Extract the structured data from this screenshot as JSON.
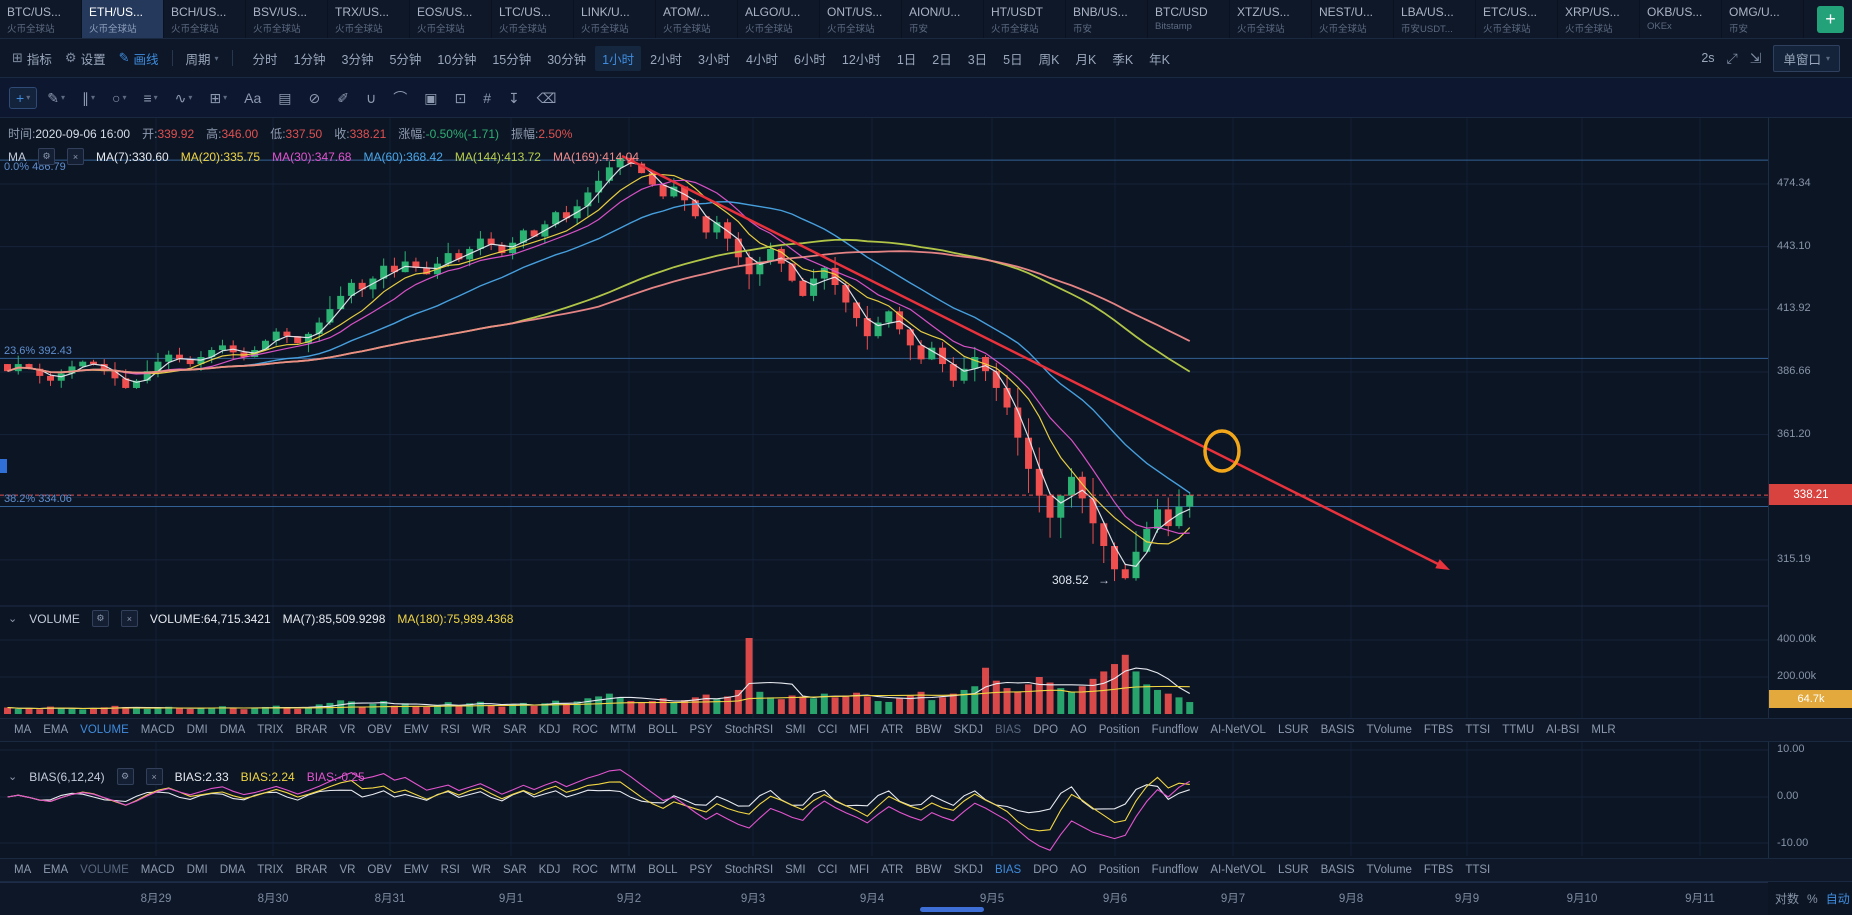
{
  "tabbar": {
    "add_label": "+",
    "tabs": [
      {
        "symbol": "BTC/US...",
        "exchange": "火币全球站"
      },
      {
        "symbol": "ETH/US...",
        "exchange": "火币全球站",
        "active": true
      },
      {
        "symbol": "BCH/US...",
        "exchange": "火币全球站"
      },
      {
        "symbol": "BSV/US...",
        "exchange": "火币全球站"
      },
      {
        "symbol": "TRX/US...",
        "exchange": "火币全球站"
      },
      {
        "symbol": "EOS/US...",
        "exchange": "火币全球站"
      },
      {
        "symbol": "LTC/US...",
        "exchange": "火币全球站"
      },
      {
        "symbol": "LINK/U...",
        "exchange": "火币全球站"
      },
      {
        "symbol": "ATOM/...",
        "exchange": "火币全球站"
      },
      {
        "symbol": "ALGO/U...",
        "exchange": "火币全球站"
      },
      {
        "symbol": "ONT/US...",
        "exchange": "火币全球站"
      },
      {
        "symbol": "AION/U...",
        "exchange": "币安"
      },
      {
        "symbol": "HT/USDT",
        "exchange": "火币全球站"
      },
      {
        "symbol": "BNB/US...",
        "exchange": "币安"
      },
      {
        "symbol": "BTC/USD",
        "exchange": "Bitstamp"
      },
      {
        "symbol": "XTZ/US...",
        "exchange": "火币全球站"
      },
      {
        "symbol": "NEST/U...",
        "exchange": "火币全球站"
      },
      {
        "symbol": "LBA/US...",
        "exchange": "币安USDT..."
      },
      {
        "symbol": "ETC/US...",
        "exchange": "火币全球站"
      },
      {
        "symbol": "XRP/US...",
        "exchange": "火币全球站"
      },
      {
        "symbol": "OKB/US...",
        "exchange": "OKEx"
      },
      {
        "symbol": "OMG/U...",
        "exchange": "币安"
      }
    ]
  },
  "timebar": {
    "indicator_label": "指标",
    "settings_label": "设置",
    "draw_label": "画线",
    "period_label": "周期",
    "timeframes": [
      "分时",
      "1分钟",
      "3分钟",
      "5分钟",
      "10分钟",
      "15分钟",
      "30分钟",
      "1小时",
      "2小时",
      "3小时",
      "4小时",
      "6小时",
      "12小时",
      "1日",
      "2日",
      "3日",
      "5日",
      "周K",
      "月K",
      "季K",
      "年K"
    ],
    "active_timeframe": "1小时",
    "refresh": "2s",
    "window_mode": "单窗口"
  },
  "drawbar": {
    "tools": [
      {
        "name": "crosshair-tool",
        "glyph": "+",
        "caret": true,
        "active": true
      },
      {
        "name": "trendline-tool",
        "glyph": "✎",
        "caret": true
      },
      {
        "name": "channel-tool",
        "glyph": "∥",
        "caret": true
      },
      {
        "name": "ellipse-tool",
        "glyph": "○",
        "caret": true
      },
      {
        "name": "fib-retracement-tool",
        "glyph": "≡",
        "caret": true
      },
      {
        "name": "wave-tool",
        "glyph": "∿",
        "caret": true
      },
      {
        "name": "gann-tool",
        "glyph": "⊞",
        "caret": true
      },
      {
        "name": "text-tool",
        "glyph": "Aa",
        "caret": false
      },
      {
        "name": "brush-tool",
        "glyph": "▤",
        "caret": false
      },
      {
        "name": "hide-drawings-tool",
        "glyph": "⊘",
        "caret": false
      },
      {
        "name": "annotate-tool",
        "glyph": "✐",
        "caret": false
      },
      {
        "name": "magnet-tool",
        "glyph": "∪",
        "caret": false
      },
      {
        "name": "measure-tool",
        "glyph": "⌒",
        "caret": false
      },
      {
        "name": "lock-tool",
        "glyph": "▣",
        "caret": false
      },
      {
        "name": "copy-tool",
        "glyph": "⊡",
        "caret": false
      },
      {
        "name": "screenshot-tool",
        "glyph": "#",
        "caret": false
      },
      {
        "name": "export-tool",
        "glyph": "↧",
        "caret": false
      },
      {
        "name": "delete-tool",
        "glyph": "⌫",
        "caret": false
      }
    ]
  },
  "legends": {
    "ohlc": {
      "items": [
        {
          "label": "时间:",
          "value": "2020-09-06 16:00",
          "color": "#d7dee9"
        },
        {
          "label": "开:",
          "value": "339.92",
          "color": "#e0504f"
        },
        {
          "label": "高:",
          "value": "346.00",
          "color": "#e0504f"
        },
        {
          "label": "低:",
          "value": "337.50",
          "color": "#e0504f"
        },
        {
          "label": "收:",
          "value": "338.21",
          "color": "#e0504f"
        },
        {
          "label": "涨幅:",
          "value": "-0.50%(-1.71)",
          "color": "#2fae73"
        },
        {
          "label": "振幅:",
          "value": "2.50%",
          "color": "#e0504f"
        }
      ]
    },
    "ma": {
      "title": "MA",
      "items": [
        {
          "label": "MA(7):",
          "value": "330.60",
          "color": "#e6e9ef"
        },
        {
          "label": "MA(20):",
          "value": "335.75",
          "color": "#f0d543"
        },
        {
          "label": "MA(30):",
          "value": "347.68",
          "color": "#e254ce"
        },
        {
          "label": "MA(60):",
          "value": "368.42",
          "color": "#4aa6e8"
        },
        {
          "label": "MA(144):",
          "value": "413.72",
          "color": "#b9cf4a"
        },
        {
          "label": "MA(169):",
          "value": "414.04",
          "color": "#f08a8a"
        }
      ]
    },
    "volume": {
      "title": "VOLUME",
      "items": [
        {
          "label": "VOLUME:",
          "value": "64,715.3421",
          "color": "#e6e9ef"
        },
        {
          "label": "MA(7):",
          "value": "85,509.9298",
          "color": "#e6e9ef"
        },
        {
          "label": "MA(180):",
          "value": "75,989.4368",
          "color": "#f0d543"
        }
      ]
    },
    "bias": {
      "title": "BIAS(6,12,24)",
      "items": [
        {
          "label": "BIAS:",
          "value": "2.33",
          "color": "#e6e9ef"
        },
        {
          "label": "BIAS:",
          "value": "2.24",
          "color": "#f0d543"
        },
        {
          "label": "BIAS:",
          "value": "-0.25",
          "color": "#e254ce"
        }
      ]
    }
  },
  "indicator_rows": {
    "row1": [
      {
        "label": "MA"
      },
      {
        "label": "EMA"
      },
      {
        "label": "VOLUME",
        "state": "active"
      },
      {
        "label": "MACD"
      },
      {
        "label": "DMI"
      },
      {
        "label": "DMA"
      },
      {
        "label": "TRIX"
      },
      {
        "label": "BRAR"
      },
      {
        "label": "VR"
      },
      {
        "label": "OBV"
      },
      {
        "label": "EMV"
      },
      {
        "label": "RSI"
      },
      {
        "label": "WR"
      },
      {
        "label": "SAR"
      },
      {
        "label": "KDJ"
      },
      {
        "label": "ROC"
      },
      {
        "label": "MTM"
      },
      {
        "label": "BOLL"
      },
      {
        "label": "PSY"
      },
      {
        "label": "StochRSI"
      },
      {
        "label": "SMI"
      },
      {
        "label": "CCI"
      },
      {
        "label": "MFI"
      },
      {
        "label": "ATR"
      },
      {
        "label": "BBW"
      },
      {
        "label": "SKDJ"
      },
      {
        "label": "BIAS",
        "state": "semi"
      },
      {
        "label": "DPO"
      },
      {
        "label": "AO"
      },
      {
        "label": "Position"
      },
      {
        "label": "Fundflow"
      },
      {
        "label": "AI-NetVOL"
      },
      {
        "label": "LSUR"
      },
      {
        "label": "BASIS"
      },
      {
        "label": "TVolume"
      },
      {
        "label": "FTBS"
      },
      {
        "label": "TTSI"
      },
      {
        "label": "TTMU"
      },
      {
        "label": "AI-BSI"
      },
      {
        "label": "MLR"
      }
    ],
    "row2": [
      {
        "label": "MA"
      },
      {
        "label": "EMA"
      },
      {
        "label": "VOLUME",
        "state": "semi"
      },
      {
        "label": "MACD"
      },
      {
        "label": "DMI"
      },
      {
        "label": "DMA"
      },
      {
        "label": "TRIX"
      },
      {
        "label": "BRAR"
      },
      {
        "label": "VR"
      },
      {
        "label": "OBV"
      },
      {
        "label": "EMV"
      },
      {
        "label": "RSI"
      },
      {
        "label": "WR"
      },
      {
        "label": "SAR"
      },
      {
        "label": "KDJ"
      },
      {
        "label": "ROC"
      },
      {
        "label": "MTM"
      },
      {
        "label": "BOLL"
      },
      {
        "label": "PSY"
      },
      {
        "label": "StochRSI"
      },
      {
        "label": "SMI"
      },
      {
        "label": "CCI"
      },
      {
        "label": "MFI"
      },
      {
        "label": "ATR"
      },
      {
        "label": "BBW"
      },
      {
        "label": "SKDJ"
      },
      {
        "label": "BIAS",
        "state": "active"
      },
      {
        "label": "DPO"
      },
      {
        "label": "AO"
      },
      {
        "label": "Position"
      },
      {
        "label": "Fundflow"
      },
      {
        "label": "AI-NetVOL"
      },
      {
        "label": "LSUR"
      },
      {
        "label": "BASIS"
      },
      {
        "label": "TVolume"
      },
      {
        "label": "FTBS"
      },
      {
        "label": "TTSI"
      }
    ]
  },
  "axis": {
    "prices": [
      "474.34",
      "443.10",
      "413.92",
      "386.66",
      "361.20",
      "315.19"
    ],
    "price_values": [
      474.34,
      443.1,
      413.92,
      386.66,
      361.2,
      315.19
    ],
    "volume_labels": [
      {
        "text": "400.00k",
        "v": 400
      },
      {
        "text": "200.00k",
        "v": 200
      }
    ],
    "bias_labels": [
      {
        "text": "10.00",
        "v": 10
      },
      {
        "text": "0.00",
        "v": 0
      },
      {
        "text": "-10.00",
        "v": -10
      }
    ],
    "current_price": "338.21",
    "current_volume": "64.7k"
  },
  "time_axis": {
    "dates": [
      "8月29",
      "8月30",
      "8月31",
      "9月1",
      "9月2",
      "9月3",
      "9月4",
      "9月5",
      "9月6",
      "9月7",
      "9月8",
      "9月9",
      "9月10",
      "9月11"
    ],
    "log_label": "对数",
    "percent_label": "%",
    "auto_label": "自动"
  },
  "chart_data": {
    "type": "candlestick",
    "symbol": "ETH/USDT 火币全球站",
    "interval": "1小时",
    "scale": "log",
    "price_axis_range": [
      315.19,
      474.34
    ],
    "x_dates": [
      "8月29",
      "8月30",
      "8月31",
      "9月1",
      "9月2",
      "9月3",
      "9月4",
      "9月5",
      "9月6",
      "9月7",
      "9月8",
      "9月9",
      "9月10",
      "9月11"
    ],
    "closes": [
      387,
      390,
      388,
      385,
      383,
      386,
      389,
      391,
      390,
      387,
      384,
      380,
      383,
      387,
      391,
      394,
      392,
      390,
      393,
      396,
      398,
      395,
      393,
      396,
      400,
      404,
      402,
      399,
      403,
      408,
      414,
      420,
      426,
      423,
      428,
      434,
      431,
      436,
      433,
      430,
      435,
      440,
      437,
      442,
      447,
      444,
      440,
      445,
      451,
      448,
      454,
      460,
      457,
      463,
      470,
      476,
      483,
      488,
      485,
      480,
      474,
      468,
      473,
      466,
      458,
      450,
      455,
      447,
      438,
      430,
      436,
      442,
      435,
      427,
      420,
      428,
      433,
      425,
      417,
      410,
      402,
      408,
      413,
      405,
      398,
      392,
      397,
      390,
      383,
      388,
      393,
      387,
      380,
      372,
      360,
      348,
      338,
      330,
      338,
      345,
      337,
      328,
      320,
      312,
      309,
      318,
      326,
      333,
      327,
      334,
      338.21
    ],
    "volumes_k": [
      35,
      28,
      30,
      26,
      40,
      32,
      27,
      25,
      30,
      36,
      44,
      38,
      30,
      28,
      33,
      39,
      31,
      27,
      30,
      35,
      42,
      30,
      26,
      32,
      38,
      45,
      33,
      28,
      36,
      52,
      60,
      74,
      68,
      40,
      55,
      70,
      45,
      58,
      42,
      38,
      50,
      64,
      42,
      58,
      66,
      48,
      40,
      52,
      60,
      44,
      58,
      72,
      55,
      68,
      85,
      95,
      110,
      90,
      70,
      65,
      70,
      85,
      60,
      75,
      90,
      105,
      80,
      95,
      130,
      415,
      120,
      90,
      80,
      100,
      95,
      85,
      110,
      90,
      100,
      115,
      95,
      70,
      65,
      85,
      100,
      120,
      75,
      90,
      110,
      130,
      150,
      250,
      180,
      140,
      120,
      160,
      200,
      170,
      140,
      120,
      150,
      190,
      230,
      270,
      320,
      230,
      160,
      130,
      110,
      90,
      64.7
    ],
    "ohlc_current": {
      "time": "2020-09-06 16:00",
      "open": 339.92,
      "high": 346.0,
      "low": 337.5,
      "close": 338.21,
      "change_pct": "-0.50%",
      "change": "-1.71",
      "amplitude": "2.50%"
    },
    "ma_values": {
      "MA7": 330.6,
      "MA20": 335.75,
      "MA30": 347.68,
      "MA60": 368.42,
      "MA144": 413.72,
      "MA169": 414.04
    },
    "volume_values": {
      "current": "64,715.3421",
      "MA7": "85,509.9298",
      "MA180": "75,989.4368"
    },
    "bias_values": {
      "BIAS6": 2.33,
      "BIAS12": 2.24,
      "BIAS24": -0.25
    },
    "fib_levels": [
      {
        "label": "0.0%",
        "price": 486.79
      },
      {
        "label": "23.6%",
        "price": 392.43
      },
      {
        "label": "38.2%",
        "price": 334.06
      }
    ],
    "annotations": {
      "low_label": "308.52",
      "current_price_line": 338.21,
      "trend_arrow": "down-right",
      "highlight_circle": true
    }
  }
}
